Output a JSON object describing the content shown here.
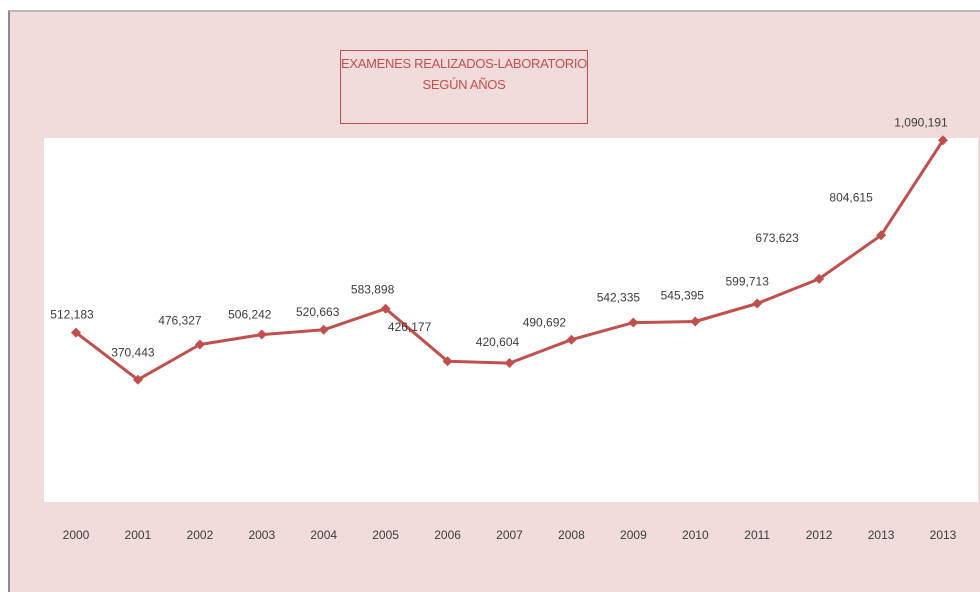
{
  "chart_data": {
    "type": "line",
    "title": "EXAMENES REALIZADOS-LABORATORIO",
    "subtitle": "SEGÚN AÑOS",
    "categories": [
      "2000",
      "2001",
      "2002",
      "2003",
      "2004",
      "2005",
      "2006",
      "2007",
      "2008",
      "2009",
      "2010",
      "2011",
      "2012",
      "2013",
      "2013"
    ],
    "series": [
      {
        "values": [
          512183,
          370443,
          476327,
          506242,
          520663,
          583898,
          426177,
          420604,
          490692,
          542335,
          545395,
          599713,
          673623,
          804615,
          1090191
        ],
        "data_labels": [
          "512,183",
          "370,443",
          "476,327",
          "506,242",
          "520,663",
          "583,898",
          "426,177",
          "420,604",
          "490,692",
          "542,335",
          "545,395",
          "599,713",
          "673,623",
          "804,615",
          "1,090,191"
        ]
      }
    ],
    "ylim": [
      0,
      1100000
    ],
    "grid": false,
    "legend": "none",
    "colors": {
      "line": "#c0504d",
      "background": "#f2dcdb",
      "plot_background": "#ffffff",
      "title": "#c0504d"
    }
  }
}
